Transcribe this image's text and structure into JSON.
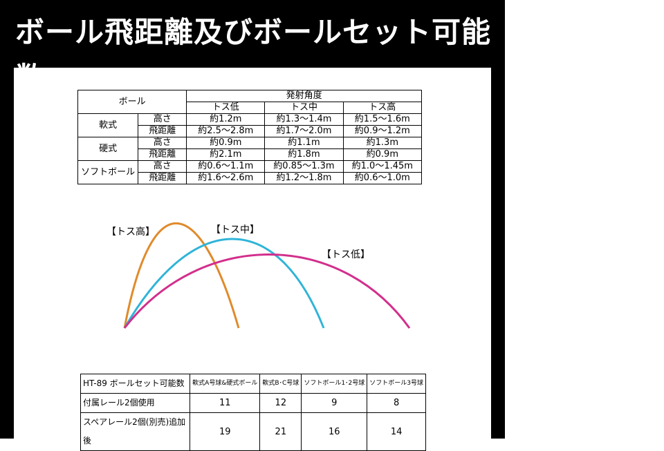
{
  "title": "ボール飛距離及びボールセット可能数",
  "flight_table": {
    "ball_header": "ボール",
    "angle_header": "発射角度",
    "angles": [
      "トス低",
      "トス中",
      "トス高"
    ],
    "rows": [
      {
        "ball": "軟式",
        "measures": [
          {
            "name": "高さ",
            "values": [
              "約1.2m",
              "約1.3〜1.4m",
              "約1.5〜1.6m"
            ]
          },
          {
            "name": "飛距離",
            "values": [
              "約2.5〜2.8m",
              "約1.7〜2.0m",
              "約0.9〜1.2m"
            ]
          }
        ]
      },
      {
        "ball": "硬式",
        "measures": [
          {
            "name": "高さ",
            "values": [
              "約0.9m",
              "約1.1m",
              "約1.3m"
            ]
          },
          {
            "name": "飛距離",
            "values": [
              "約2.1m",
              "約1.8m",
              "約0.9m"
            ]
          }
        ]
      },
      {
        "ball": "ソフトボール",
        "measures": [
          {
            "name": "高さ",
            "values": [
              "約0.6〜1.1m",
              "約0.85〜1.3m",
              "約1.0〜1.45m"
            ]
          },
          {
            "name": "飛距離",
            "values": [
              "約1.6〜2.6m",
              "約1.2〜1.8m",
              "約0.6〜1.0m"
            ]
          }
        ]
      }
    ]
  },
  "trajectory": {
    "labels": {
      "high": "【トス高】",
      "mid": "【トス中】",
      "low": "【トス低】"
    },
    "colors": {
      "high": "#e08a2a",
      "mid": "#2fb4d8",
      "low": "#d22f8c"
    }
  },
  "set_table": {
    "header": "HT-89 ボールセット可能数",
    "columns": [
      "軟式A号球&硬式ボール",
      "軟式B･C号球",
      "ソフトボール1･2号球",
      "ソフトボール3号球"
    ],
    "rows": [
      {
        "label": "付属レール2個使用",
        "values": [
          "11",
          "12",
          "9",
          "8"
        ]
      },
      {
        "label": "スペアレール2個(別売)追加後",
        "values": [
          "19",
          "21",
          "16",
          "14"
        ]
      }
    ]
  }
}
